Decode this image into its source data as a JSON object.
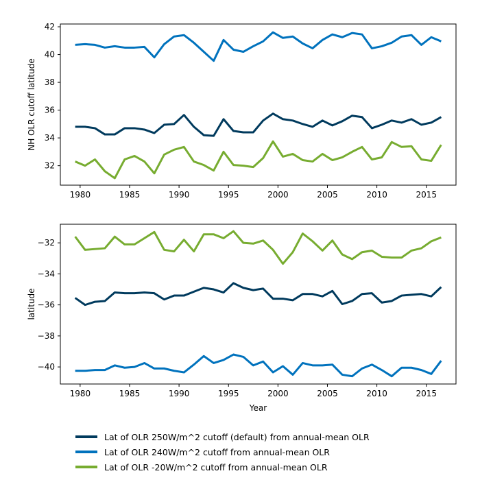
{
  "chart_data": [
    {
      "type": "line",
      "title": "",
      "xlabel": "",
      "ylabel": "NH OLR cutoff latitude",
      "xlim": [
        1978,
        2018
      ],
      "ylim": [
        30.6,
        42.2
      ],
      "xticks": [
        1980,
        1985,
        1990,
        1995,
        2000,
        2005,
        2010,
        2015
      ],
      "yticks": [
        32,
        34,
        36,
        38,
        40,
        42
      ],
      "x": [
        1979.5,
        1980.5,
        1981.5,
        1982.5,
        1983.5,
        1984.5,
        1985.5,
        1986.5,
        1987.5,
        1988.5,
        1989.5,
        1990.5,
        1991.5,
        1992.5,
        1993.5,
        1994.5,
        1995.5,
        1996.5,
        1997.5,
        1998.5,
        1999.5,
        2000.5,
        2001.5,
        2002.5,
        2003.5,
        2004.5,
        2005.5,
        2006.5,
        2007.5,
        2008.5,
        2009.5,
        2010.5,
        2011.5,
        2012.5,
        2013.5,
        2014.5,
        2015.5,
        2016.5
      ],
      "series": [
        {
          "name": "Lat of OLR 250W/m^2 cutoff (default) from annual-mean OLR",
          "color": "#003a5d",
          "values": [
            34.8,
            34.8,
            34.7,
            34.25,
            34.25,
            34.7,
            34.7,
            34.6,
            34.35,
            34.95,
            35.0,
            35.65,
            34.8,
            34.2,
            34.15,
            35.35,
            34.5,
            34.4,
            34.4,
            35.25,
            35.75,
            35.35,
            35.25,
            35.0,
            34.8,
            35.25,
            34.9,
            35.2,
            35.6,
            35.5,
            34.7,
            34.95,
            35.25,
            35.1,
            35.35,
            34.95,
            35.1,
            35.5
          ]
        },
        {
          "name": "Lat of OLR 240W/m^2 cutoff from annual-mean OLR",
          "color": "#0072bd",
          "values": [
            40.7,
            40.75,
            40.7,
            40.5,
            40.6,
            40.5,
            40.5,
            40.55,
            39.8,
            40.75,
            41.3,
            41.4,
            40.85,
            40.2,
            39.55,
            41.05,
            40.35,
            40.2,
            40.6,
            40.95,
            41.6,
            41.2,
            41.3,
            40.8,
            40.45,
            41.05,
            41.45,
            41.25,
            41.55,
            41.45,
            40.45,
            40.6,
            40.85,
            41.3,
            41.4,
            40.7,
            41.25,
            40.95
          ]
        },
        {
          "name": "Lat of OLR -20W/m^2 cutoff from annual-mean OLR",
          "color": "#77ac30",
          "values": [
            32.3,
            32.0,
            32.45,
            31.6,
            31.1,
            32.45,
            32.7,
            32.3,
            31.45,
            32.8,
            33.15,
            33.35,
            32.3,
            32.05,
            31.65,
            33.0,
            32.05,
            32.0,
            31.9,
            32.55,
            33.75,
            32.65,
            32.85,
            32.4,
            32.3,
            32.85,
            32.4,
            32.6,
            33.0,
            33.35,
            32.45,
            32.6,
            33.7,
            33.35,
            33.4,
            32.45,
            32.35,
            33.5
          ]
        }
      ]
    },
    {
      "type": "line",
      "title": "",
      "xlabel": "Year",
      "ylabel": "latitude",
      "xlim": [
        1978,
        2018
      ],
      "ylim": [
        -41.1,
        -30.8
      ],
      "xticks": [
        1980,
        1985,
        1990,
        1995,
        2000,
        2005,
        2010,
        2015
      ],
      "yticks": [
        -40,
        -38,
        -36,
        -34,
        -32
      ],
      "x": [
        1979.5,
        1980.5,
        1981.5,
        1982.5,
        1983.5,
        1984.5,
        1985.5,
        1986.5,
        1987.5,
        1988.5,
        1989.5,
        1990.5,
        1991.5,
        1992.5,
        1993.5,
        1994.5,
        1995.5,
        1996.5,
        1997.5,
        1998.5,
        1999.5,
        2000.5,
        2001.5,
        2002.5,
        2003.5,
        2004.5,
        2005.5,
        2006.5,
        2007.5,
        2008.5,
        2009.5,
        2010.5,
        2011.5,
        2012.5,
        2013.5,
        2014.5,
        2015.5,
        2016.5
      ],
      "series": [
        {
          "name": "Lat of OLR 250W/m^2 cutoff (default) from annual-mean OLR",
          "color": "#003a5d",
          "values": [
            -35.55,
            -36.0,
            -35.8,
            -35.75,
            -35.2,
            -35.25,
            -35.25,
            -35.2,
            -35.25,
            -35.65,
            -35.4,
            -35.4,
            -35.15,
            -34.9,
            -35.0,
            -35.2,
            -34.6,
            -34.9,
            -35.05,
            -34.95,
            -35.6,
            -35.6,
            -35.7,
            -35.3,
            -35.3,
            -35.45,
            -35.1,
            -35.95,
            -35.75,
            -35.3,
            -35.25,
            -35.85,
            -35.75,
            -35.4,
            -35.35,
            -35.3,
            -35.45,
            -34.85
          ]
        },
        {
          "name": "Lat of OLR 240W/m^2 cutoff from annual-mean OLR",
          "color": "#0072bd",
          "values": [
            -40.25,
            -40.25,
            -40.2,
            -40.2,
            -39.9,
            -40.05,
            -40.0,
            -39.75,
            -40.1,
            -40.1,
            -40.25,
            -40.35,
            -39.85,
            -39.3,
            -39.75,
            -39.55,
            -39.2,
            -39.35,
            -39.9,
            -39.65,
            -40.35,
            -39.95,
            -40.5,
            -39.75,
            -39.9,
            -39.9,
            -39.85,
            -40.5,
            -40.6,
            -40.1,
            -39.85,
            -40.2,
            -40.6,
            -40.05,
            -40.05,
            -40.2,
            -40.45,
            -39.6
          ]
        },
        {
          "name": "Lat of OLR -20W/m^2 cutoff from annual-mean OLR",
          "color": "#77ac30",
          "values": [
            -31.6,
            -32.45,
            -32.4,
            -32.35,
            -31.6,
            -32.1,
            -32.1,
            -31.7,
            -31.3,
            -32.45,
            -32.55,
            -31.8,
            -32.55,
            -31.45,
            -31.45,
            -31.7,
            -31.25,
            -32.0,
            -32.05,
            -31.85,
            -32.45,
            -33.35,
            -32.6,
            -31.4,
            -31.9,
            -32.5,
            -31.85,
            -32.75,
            -33.05,
            -32.6,
            -32.5,
            -32.9,
            -32.95,
            -32.95,
            -32.5,
            -32.35,
            -31.9,
            -31.65
          ]
        }
      ]
    }
  ],
  "legend": {
    "placement": "bottom",
    "items": [
      {
        "label": "Lat of OLR 250W/m^2 cutoff (default) from annual-mean OLR",
        "color": "#003a5d"
      },
      {
        "label": "Lat of OLR 240W/m^2 cutoff from annual-mean OLR",
        "color": "#0072bd"
      },
      {
        "label": "Lat of OLR -20W/m^2 cutoff from annual-mean OLR",
        "color": "#77ac30"
      }
    ]
  }
}
